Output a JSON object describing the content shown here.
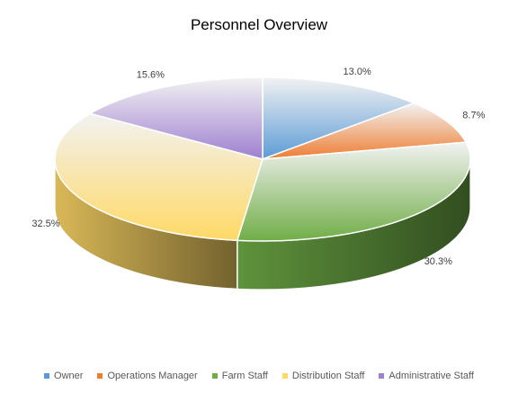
{
  "chart_data": {
    "type": "pie",
    "title": "Personnel Overview",
    "categories": [
      "Owner",
      "Operations Manager",
      "Farm Staff",
      "Distribution Staff",
      "Administrative Staff"
    ],
    "values": [
      13.0,
      8.7,
      30.3,
      32.5,
      15.6
    ],
    "labels": [
      "13.0%",
      "8.7%",
      "30.3%",
      "32.5%",
      "15.6%"
    ],
    "colors": [
      "#5b9bd5",
      "#ed7d31",
      "#70ad47",
      "#ffd966",
      "#9e7fd0"
    ],
    "legend_position": "bottom",
    "style": "3d"
  }
}
